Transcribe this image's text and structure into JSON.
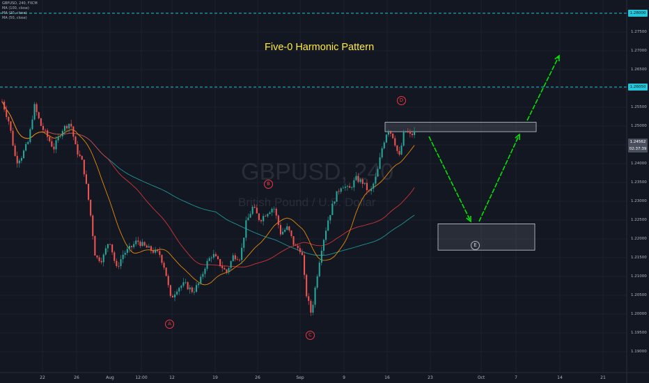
{
  "chart_data": {
    "type": "candlestick",
    "symbol_line": "GBPUSD, 240, FXCM",
    "indicators": [
      "MA (100, close)",
      "MA (20, close)",
      "MA (50, close)"
    ],
    "title": "Five-0 Harmonic Pattern",
    "watermark_symbol": "GBPUSD, 240",
    "watermark_description": "British Pound / U.S. Dollar",
    "y_axis": {
      "ticks": [
        "1.27500",
        "1.27000",
        "1.26500",
        "1.25500",
        "1.25000",
        "1.24000",
        "1.23500",
        "1.23000",
        "1.22500",
        "1.22000",
        "1.21500",
        "1.21000",
        "1.20500",
        "1.20000",
        "1.19500",
        "1.19000"
      ],
      "range": [
        1.1875,
        1.282
      ]
    },
    "x_axis": {
      "ticks": [
        "22",
        "26",
        "Aug",
        "12:00",
        "12",
        "19",
        "26",
        "Sep",
        "9",
        "16",
        "23",
        "Oct",
        "7",
        "14",
        "21"
      ]
    },
    "levels": [
      {
        "label": "1.28000",
        "value": 1.28,
        "color": "#26c6da",
        "style": "dashed"
      },
      {
        "label": "1.26050",
        "value": 1.2605,
        "color": "#26c6da",
        "style": "dashed"
      }
    ],
    "price_badge": {
      "price": "1.24562",
      "time": "02:37:39"
    },
    "pattern_points": [
      {
        "label": "A",
        "price": 1.2015
      },
      {
        "label": "B",
        "price": 1.235
      },
      {
        "label": "C",
        "price": 1.196
      },
      {
        "label": "D",
        "price": 1.252
      },
      {
        "label": "E",
        "price": 1.22
      }
    ],
    "zones": [
      {
        "name": "resistance-zone",
        "top": 1.251,
        "bottom": 1.2485
      },
      {
        "name": "target-zone-e",
        "top": 1.224,
        "bottom": 1.217
      }
    ],
    "colors": {
      "background": "#131722",
      "up": "#26a69a",
      "down": "#ef5350",
      "ma100": "#1ea6a6",
      "ma20": "#ff9800",
      "ma50": "#e53935",
      "arrows": "#00e600",
      "title": "#ffeb3b"
    }
  }
}
